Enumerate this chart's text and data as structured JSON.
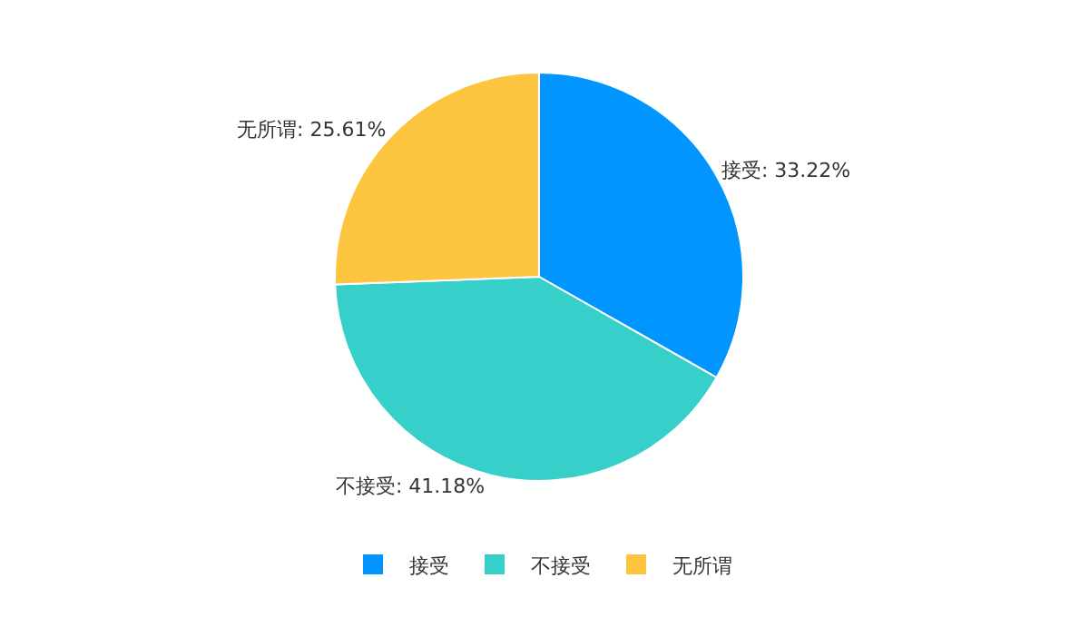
{
  "chart_data": {
    "type": "pie",
    "categories": [
      "接受",
      "不接受",
      "无所谓"
    ],
    "values": [
      33.22,
      41.18,
      25.61
    ],
    "colors": [
      "#0095ff",
      "#36cfc9",
      "#fcc43f"
    ],
    "value_labels": [
      "接受: 33.22%",
      "不接受: 41.18%",
      "无所谓: 25.61%"
    ],
    "legend": "bottom"
  }
}
